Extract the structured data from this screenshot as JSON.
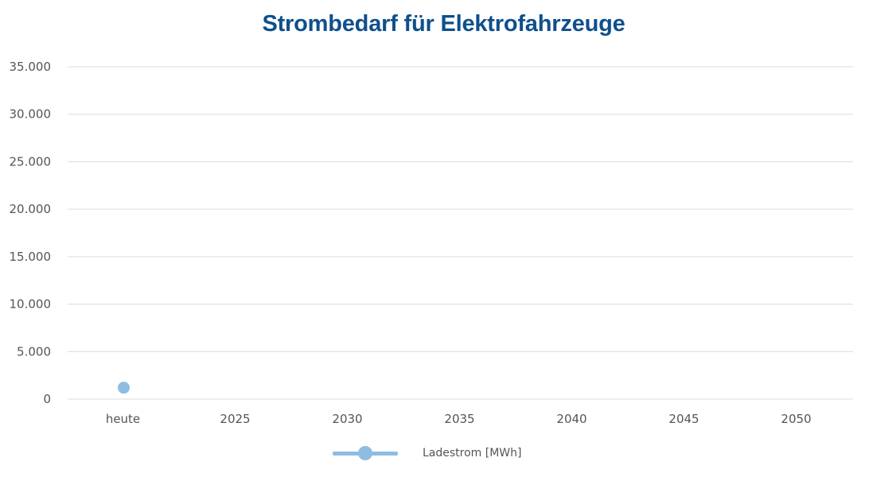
{
  "chart_data": {
    "type": "line",
    "title": "Strombedarf für Elektrofahrzeuge",
    "xlabel": "",
    "ylabel": "",
    "categories": [
      "heute",
      "2025",
      "2030",
      "2035",
      "2040",
      "2045",
      "2050"
    ],
    "y_tick_labels": [
      "0",
      "5.000",
      "10.000",
      "15.000",
      "20.000",
      "25.000",
      "30.000",
      "35.000"
    ],
    "y_ticks": [
      0,
      5000,
      10000,
      15000,
      20000,
      25000,
      30000,
      35000
    ],
    "ylim": [
      0,
      35000
    ],
    "grid": true,
    "legend_position": "bottom",
    "series": [
      {
        "name": "Ladestrom [MWh]",
        "values": [
          1200,
          null,
          null,
          null,
          null,
          null,
          null
        ],
        "color": "#8dbde3"
      }
    ]
  },
  "colors": {
    "title": "#0f4f8c",
    "gridline": "#dcdcdc",
    "series": "#8dbde3",
    "tick_text": "#555555"
  }
}
